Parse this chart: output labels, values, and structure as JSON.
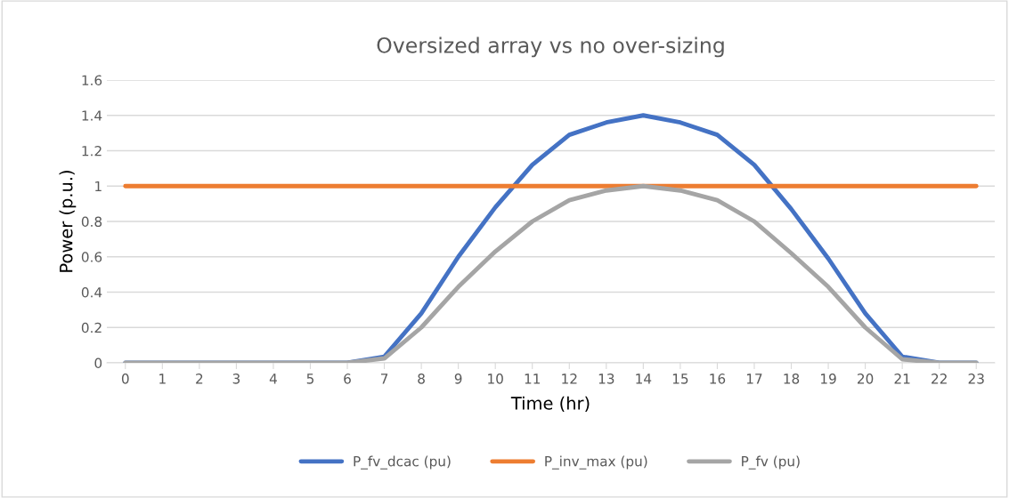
{
  "chart_data": {
    "type": "line",
    "title": "Oversized array vs no over-sizing",
    "xlabel": "Time (hr)",
    "ylabel": "Power (p.u.)",
    "categories": [
      "0",
      "1",
      "2",
      "3",
      "4",
      "5",
      "6",
      "7",
      "8",
      "9",
      "10",
      "11",
      "12",
      "13",
      "14",
      "15",
      "16",
      "17",
      "18",
      "19",
      "20",
      "21",
      "22",
      "23"
    ],
    "series": [
      {
        "name": "P_fv_dcac (pu)",
        "color": "#4472c4",
        "values": [
          0,
          0,
          0,
          0,
          0,
          0,
          0,
          0.035,
          0.28,
          0.6,
          0.88,
          1.12,
          1.29,
          1.36,
          1.4,
          1.36,
          1.29,
          1.12,
          0.87,
          0.59,
          0.28,
          0.035,
          0,
          0
        ]
      },
      {
        "name": "P_inv_max (pu)",
        "color": "#ed7d31",
        "values": [
          1,
          1,
          1,
          1,
          1,
          1,
          1,
          1,
          1,
          1,
          1,
          1,
          1,
          1,
          1,
          1,
          1,
          1,
          1,
          1,
          1,
          1,
          1,
          1
        ]
      },
      {
        "name": "P_fv (pu)",
        "color": "#a5a5a5",
        "values": [
          0,
          0,
          0,
          0,
          0,
          0,
          0,
          0.025,
          0.2,
          0.43,
          0.63,
          0.8,
          0.92,
          0.975,
          1,
          0.975,
          0.92,
          0.8,
          0.62,
          0.43,
          0.2,
          0.02,
          0,
          0
        ]
      }
    ],
    "ylim": [
      0,
      1.6
    ],
    "yticks": [
      0,
      0.2,
      0.4,
      0.6,
      0.8,
      1,
      1.2,
      1.4,
      1.6
    ],
    "grid": "y",
    "legend": "bottom",
    "marker": "none",
    "line_style": "solid"
  }
}
